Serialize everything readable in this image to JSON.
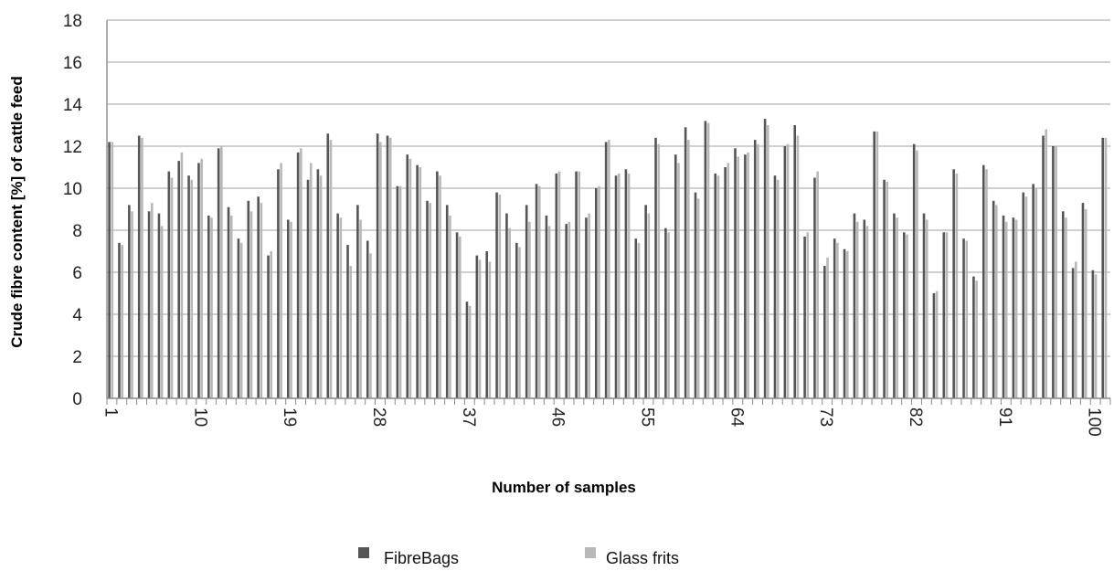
{
  "chart_data": {
    "type": "bar",
    "title": "",
    "xlabel": "Number of samples",
    "ylabel": "Crude fibre content [%] of cattle feed",
    "ylim": [
      0,
      18
    ],
    "yticks": [
      0,
      2,
      4,
      6,
      8,
      10,
      12,
      14,
      16,
      18
    ],
    "x_tick_labels": [
      "1",
      "10",
      "19",
      "28",
      "37",
      "46",
      "55",
      "64",
      "73",
      "82",
      "91",
      "100"
    ],
    "grid": "horizontal",
    "legend_position": "bottom",
    "colors": {
      "FibreBags": "#555555",
      "Glass frits": "#b8b8b8"
    },
    "categories": [
      1,
      2,
      3,
      4,
      5,
      6,
      7,
      8,
      9,
      10,
      11,
      12,
      13,
      14,
      15,
      16,
      17,
      18,
      19,
      20,
      21,
      22,
      23,
      24,
      25,
      26,
      27,
      28,
      29,
      30,
      31,
      32,
      33,
      34,
      35,
      36,
      37,
      38,
      39,
      40,
      41,
      42,
      43,
      44,
      45,
      46,
      47,
      48,
      49,
      50,
      51,
      52,
      53,
      54,
      55,
      56,
      57,
      58,
      59,
      60,
      61,
      62,
      63,
      64,
      65,
      66,
      67,
      68,
      69,
      70,
      71,
      72,
      73,
      74,
      75,
      76,
      77,
      78,
      79,
      80,
      81,
      82,
      83,
      84,
      85,
      86,
      87,
      88,
      89,
      90,
      91,
      92,
      93,
      94,
      95,
      96,
      97,
      98,
      99,
      100,
      101
    ],
    "series": [
      {
        "name": "FibreBags",
        "values": [
          12.2,
          7.4,
          9.2,
          12.5,
          8.9,
          8.8,
          10.8,
          11.3,
          10.6,
          11.2,
          8.7,
          11.9,
          9.1,
          7.6,
          9.4,
          9.6,
          6.8,
          10.9,
          8.5,
          11.7,
          10.4,
          10.9,
          12.6,
          8.8,
          7.3,
          9.2,
          7.5,
          12.6,
          12.5,
          10.1,
          11.6,
          11.1,
          9.4,
          10.8,
          9.2,
          7.9,
          4.6,
          6.8,
          7.0,
          9.8,
          8.8,
          7.4,
          9.2,
          10.2,
          8.7,
          10.7,
          8.3,
          10.8,
          8.6,
          10.0,
          12.2,
          10.6,
          10.9,
          7.6,
          9.2,
          12.4,
          8.1,
          11.6,
          12.9,
          9.8,
          13.2,
          10.7,
          11.0,
          11.9,
          11.6,
          12.3,
          13.3,
          10.6,
          12.0,
          13.0,
          7.7,
          10.5,
          6.3,
          7.6,
          7.1,
          8.8,
          8.5,
          12.7,
          10.4,
          8.8,
          7.9,
          12.1,
          8.8,
          5.0,
          7.9,
          10.9,
          7.6,
          5.8,
          11.1,
          9.4,
          8.7,
          8.6,
          9.8,
          10.2,
          12.5,
          12.0,
          8.9,
          6.2,
          9.3,
          6.1,
          12.4
        ]
      },
      {
        "name": "Glass frits",
        "values": [
          12.2,
          7.3,
          8.9,
          12.4,
          9.3,
          8.2,
          10.5,
          11.7,
          10.4,
          11.4,
          8.6,
          12.0,
          8.7,
          7.4,
          8.9,
          9.3,
          7.0,
          11.2,
          8.4,
          11.9,
          11.2,
          10.6,
          12.3,
          8.6,
          6.3,
          8.5,
          6.9,
          12.2,
          12.4,
          10.1,
          11.4,
          11.0,
          9.3,
          10.6,
          8.7,
          7.7,
          4.4,
          6.6,
          6.5,
          9.7,
          8.1,
          7.2,
          8.4,
          10.1,
          8.2,
          10.8,
          8.4,
          10.8,
          8.8,
          10.1,
          12.3,
          10.7,
          10.7,
          7.4,
          8.8,
          12.1,
          7.9,
          11.2,
          12.3,
          9.5,
          13.1,
          10.6,
          11.2,
          11.5,
          11.7,
          12.1,
          13.0,
          10.4,
          12.1,
          12.5,
          7.9,
          10.8,
          6.7,
          7.4,
          7.0,
          8.4,
          8.2,
          12.7,
          10.3,
          8.6,
          7.8,
          11.8,
          8.5,
          5.1,
          7.9,
          10.7,
          7.5,
          5.6,
          10.9,
          9.2,
          8.4,
          8.5,
          9.6,
          10.0,
          12.8,
          12.0,
          8.6,
          6.5,
          9.0,
          5.9,
          12.4
        ]
      }
    ]
  }
}
